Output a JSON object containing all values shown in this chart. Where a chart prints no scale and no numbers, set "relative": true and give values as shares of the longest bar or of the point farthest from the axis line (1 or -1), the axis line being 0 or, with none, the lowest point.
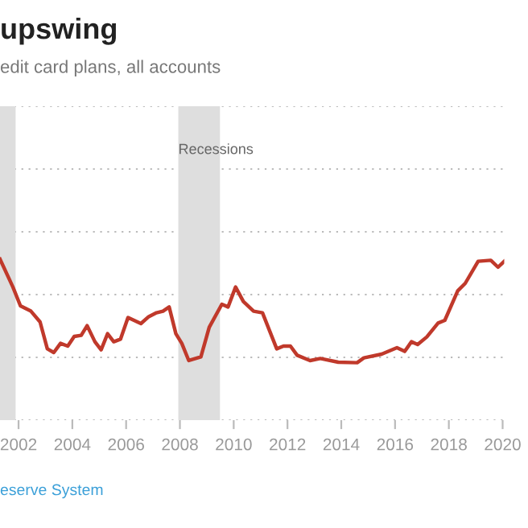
{
  "chart_data": {
    "type": "line",
    "title": "upswing",
    "subtitle": "edit card plans, all accounts",
    "relative": true,
    "marker": "none",
    "ref_lines": [
      {
        "axis": "y",
        "value": 0,
        "color": "#bbbbbb",
        "line_style": "dotted"
      },
      {
        "axis": "y",
        "value": 0.39,
        "color": "#bbbbbb",
        "line_style": "dotted"
      },
      {
        "axis": "y",
        "value": 0.78,
        "color": "#bbbbbb",
        "line_style": "dotted"
      },
      {
        "axis": "y",
        "value": 1.17,
        "color": "#bbbbbb",
        "line_style": "dotted"
      },
      {
        "axis": "y",
        "value": 1.56,
        "color": "#bbbbbb",
        "line_style": "dotted"
      },
      {
        "axis": "y",
        "value": 1.95,
        "color": "#bbbbbb",
        "line_style": "dotted"
      }
    ],
    "line_style": "solid",
    "x": [
      2001.31,
      2001.79,
      2002.07,
      2002.46,
      2002.8,
      2003.07,
      2003.31,
      2003.56,
      2003.83,
      2004.07,
      2004.33,
      2004.55,
      2004.84,
      2005.07,
      2005.31,
      2005.54,
      2005.79,
      2006.07,
      2006.55,
      2006.84,
      2007.13,
      2007.37,
      2007.6,
      2007.85,
      2008.07,
      2008.33,
      2008.78,
      2009.09,
      2009.56,
      2009.79,
      2010.07,
      2010.36,
      2010.74,
      2011.07,
      2011.6,
      2011.85,
      2012.11,
      2012.36,
      2012.84,
      2013.22,
      2013.89,
      2014.59,
      2014.84,
      2015.5,
      2016.07,
      2016.36,
      2016.61,
      2016.84,
      2017.18,
      2017.6,
      2017.85,
      2018.33,
      2018.61,
      2019.09,
      2019.56,
      2019.83,
      2020.06
    ],
    "series": [
      {
        "color": "#c0392b",
        "values": [
          1.0,
          0.827,
          0.71,
          0.677,
          0.61,
          0.443,
          0.42,
          0.477,
          0.46,
          0.52,
          0.527,
          0.587,
          0.487,
          0.437,
          0.537,
          0.487,
          0.503,
          0.637,
          0.6,
          0.643,
          0.667,
          0.677,
          0.703,
          0.537,
          0.477,
          0.37,
          0.393,
          0.577,
          0.72,
          0.703,
          0.827,
          0.737,
          0.677,
          0.667,
          0.443,
          0.46,
          0.46,
          0.403,
          0.37,
          0.383,
          0.36,
          0.357,
          0.387,
          0.41,
          0.45,
          0.427,
          0.487,
          0.47,
          0.517,
          0.603,
          0.62,
          0.803,
          0.85,
          0.987,
          0.993,
          0.95,
          0.987
        ]
      }
    ],
    "xlim": [
      2001.31,
      2020.06
    ],
    "xticks": [
      2002,
      2004,
      2006,
      2008,
      2010,
      2012,
      2014,
      2016,
      2018,
      2020
    ],
    "bands": [
      {
        "axis": "x",
        "from": 2001.31,
        "to": 2001.89,
        "color": "#dedede"
      },
      {
        "axis": "x",
        "from": 2007.94,
        "to": 2009.49,
        "label": "Recessions",
        "color": "#dedede"
      }
    ],
    "annotations": [
      "eserve System"
    ]
  }
}
